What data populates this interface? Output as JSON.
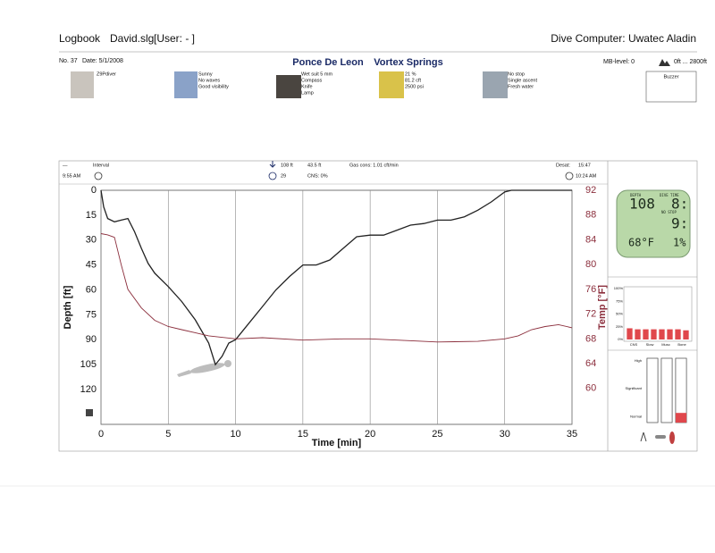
{
  "header": {
    "logbook": "Logbook",
    "file": "David.slg",
    "user": "[User:  - ]",
    "computer": "Dive Computer: Uwatec Aladin"
  },
  "dive": {
    "number": "No. 37",
    "date": "Date: 5/1/2008",
    "site": "Ponce De Leon",
    "location": "Vortex Springs",
    "mb_level": "MB-level: 0",
    "altitude": "0ft ... 2800ft",
    "warning": "Buzzer"
  },
  "icons": [
    {
      "lines": [
        "Z9Pdiver"
      ]
    },
    {
      "lines": [
        "Sunny",
        "No waves",
        "Good visibility"
      ]
    },
    {
      "lines": [
        "Wet suit 5 mm",
        "Compass",
        "Knife",
        "Lamp"
      ]
    },
    {
      "lines": [
        "21 %",
        "81.2 cft",
        "2500 psi"
      ]
    },
    {
      "lines": [
        "No stop",
        "Single ascent",
        "Fresh water"
      ]
    }
  ],
  "dive_info": {
    "dash": "—",
    "interval": "Interval",
    "max_depth": "108 ft",
    "avg_depth": "43.5 ft",
    "gas": "Gas cons: 1.01 cft/min",
    "desat_label": "Desat:",
    "desat": "15:47",
    "start": "9:55 AM",
    "duration": "29",
    "cns": "CNS: 0%",
    "end": "10:24 AM"
  },
  "computer_display": {
    "depth_label": "DEPTH",
    "time_label": "DIVE TIME",
    "nostop_label": "NO STOP",
    "depth": "108",
    "time": "8:",
    "nostop": "9:",
    "temp": "68°F",
    "cns": "1%"
  },
  "chart_data": [
    {
      "type": "line",
      "x_label": "Time [min]",
      "y_label": "Depth [ft]",
      "y2_label": "Temp [°F]",
      "xlim": [
        0,
        35
      ],
      "xticks": [
        0,
        5,
        10,
        15,
        20,
        25,
        30,
        35
      ],
      "ylim": [
        141,
        0
      ],
      "yticks": [
        0,
        15,
        30,
        45,
        60,
        75,
        90,
        105,
        120
      ],
      "y2lim": [
        54.2,
        92
      ],
      "y2ticks": [
        60,
        64,
        68,
        72,
        76,
        80,
        84,
        88,
        92
      ],
      "grid": "x",
      "series": [
        {
          "color": "#222222",
          "x": [
            0,
            0.2,
            0.5,
            1,
            1.5,
            2,
            2.5,
            3,
            3.5,
            4,
            5,
            6,
            7,
            8,
            8.5,
            9,
            9.5,
            10,
            11,
            12,
            13,
            14,
            15,
            16,
            17,
            18,
            19,
            20,
            21,
            22,
            23,
            24,
            25,
            26,
            27,
            28,
            29,
            30,
            30.5,
            35
          ],
          "values": [
            0,
            10,
            17,
            19,
            18,
            17,
            25,
            35,
            44,
            50,
            58,
            67,
            78,
            92,
            105,
            100,
            92,
            90,
            80,
            70,
            60,
            52,
            45,
            45,
            42,
            35,
            28,
            27,
            27,
            24,
            21,
            20,
            18,
            18,
            16,
            12,
            7,
            1,
            0,
            0
          ]
        },
        {
          "color": "#8b2e3c",
          "axis": "y2",
          "x": [
            0,
            0.5,
            1,
            1.5,
            2,
            3,
            4,
            5,
            6,
            7,
            8,
            10,
            12,
            15,
            18,
            20,
            22,
            25,
            28,
            30,
            31,
            32,
            33,
            34,
            35
          ],
          "values": [
            85,
            84.8,
            84.4,
            80,
            76,
            73,
            71,
            70,
            69.5,
            69,
            68.5,
            68,
            68.2,
            67.8,
            68,
            68,
            67.8,
            67.5,
            67.6,
            68,
            68.5,
            69.5,
            70,
            70.3,
            69.8
          ]
        }
      ]
    },
    {
      "type": "bar",
      "categories": [
        "CNS",
        null,
        "Slow",
        null,
        "Musc",
        null,
        "Bone",
        null
      ],
      "values": [
        22,
        20,
        20,
        20,
        20,
        20,
        20,
        18
      ],
      "color": "#e0474c",
      "ylim": [
        0,
        100
      ],
      "yticks": [
        {
          "value": 0,
          "label": "0%"
        },
        {
          "value": 25,
          "label": "25%"
        },
        {
          "value": 50,
          "label": "50%"
        },
        {
          "value": 75,
          "label": "75%"
        },
        {
          "value": 100,
          "label": "100%"
        }
      ]
    },
    {
      "type": "level",
      "categories": [
        null,
        null,
        null
      ],
      "values": [
        0,
        0,
        15
      ],
      "color": "#e0474c",
      "ylim": [
        0,
        100
      ],
      "yticks": [
        {
          "value": 96,
          "label": "High"
        },
        {
          "value": 53,
          "label": "Significant"
        },
        {
          "value": 9,
          "label": "Normal"
        }
      ]
    }
  ]
}
